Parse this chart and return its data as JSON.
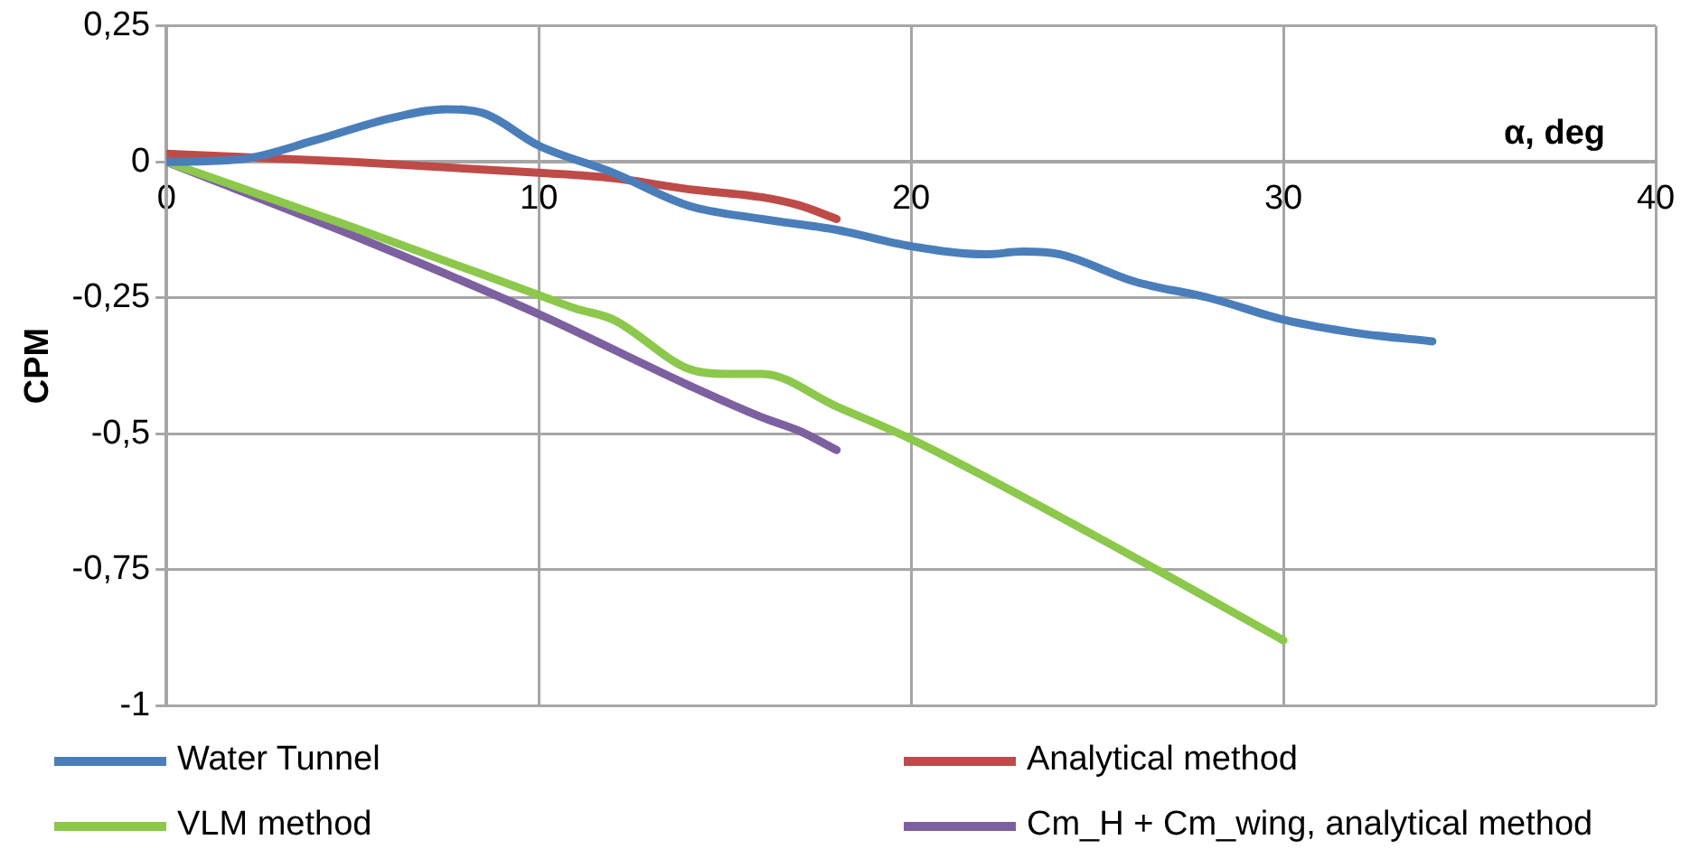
{
  "chart_data": {
    "type": "line",
    "xlabel": "α, deg",
    "ylabel": "CPM",
    "xlim": [
      0,
      40
    ],
    "xticks": [
      0,
      10,
      20,
      30,
      40
    ],
    "ylim": [
      -1,
      0.25
    ],
    "yticks": [
      {
        "value": -1,
        "label": "-1"
      },
      {
        "value": -0.75,
        "label": "-0,75"
      },
      {
        "value": -0.5,
        "label": "-0,5"
      },
      {
        "value": -0.25,
        "label": "-0,25"
      },
      {
        "value": 0,
        "label": "0"
      },
      {
        "value": 0.25,
        "label": "0,25"
      }
    ],
    "grid": true,
    "legend": "bottom",
    "marker": "none",
    "line_style": "solid",
    "series": [
      {
        "name": "Water Tunnel",
        "color": "#4a7ebb",
        "x": [
          0,
          2,
          4,
          6,
          7.5,
          8.5,
          10,
          12,
          14,
          16,
          18,
          20,
          22,
          23,
          24,
          26,
          28,
          30,
          32,
          34
        ],
        "values": [
          0,
          0.005,
          0.04,
          0.08,
          0.097,
          0.09,
          0.03,
          -0.02,
          -0.08,
          -0.105,
          -0.125,
          -0.155,
          -0.17,
          -0.165,
          -0.17,
          -0.22,
          -0.25,
          -0.29,
          -0.315,
          -0.33
        ]
      },
      {
        "name": "Analytical method",
        "color": "#be4b48",
        "x": [
          0,
          5,
          10,
          12,
          14,
          16,
          17,
          18
        ],
        "values": [
          0.015,
          0,
          -0.02,
          -0.03,
          -0.05,
          -0.065,
          -0.08,
          -0.105
        ]
      },
      {
        "name": "VLM method",
        "color": "#8cc84b",
        "x": [
          0,
          5,
          10,
          11,
          12,
          14,
          15,
          16,
          18,
          20,
          25,
          30
        ],
        "values": [
          0,
          -0.12,
          -0.245,
          -0.27,
          -0.29,
          -0.38,
          -0.39,
          -0.39,
          -0.45,
          -0.51,
          -0.69,
          -0.88
        ]
      },
      {
        "name": "Cm_H + Cm_wing, analytical method",
        "color": "#7d60a0",
        "x": [
          0,
          5,
          10,
          14,
          16,
          17,
          18
        ],
        "values": [
          0,
          -0.135,
          -0.28,
          -0.41,
          -0.47,
          -0.495,
          -0.53
        ]
      }
    ]
  }
}
